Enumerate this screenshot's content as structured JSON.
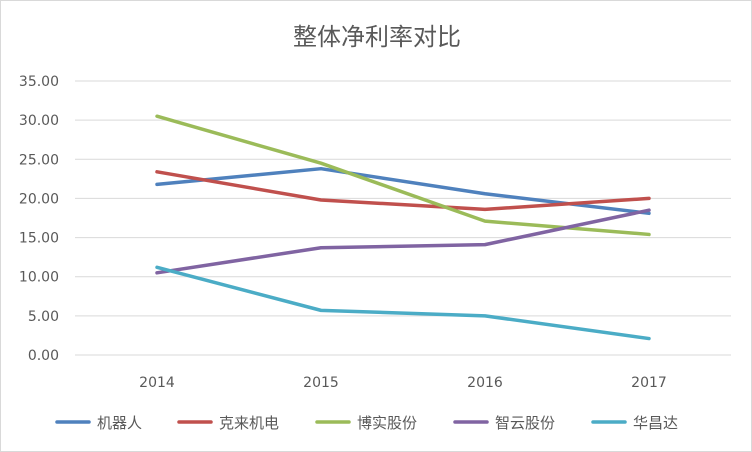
{
  "chart_data": {
    "type": "line",
    "title": "整体净利率对比",
    "categories": [
      "2014",
      "2015",
      "2016",
      "2017"
    ],
    "ylim": [
      0,
      35
    ],
    "yticks": [
      "0.00",
      "5.00",
      "10.00",
      "15.00",
      "20.00",
      "25.00",
      "30.00",
      "35.00"
    ],
    "grid": true,
    "legend_position": "bottom",
    "series": [
      {
        "name": "机器人",
        "color": "#4f81bd",
        "values": [
          21.8,
          23.8,
          20.6,
          18.1
        ]
      },
      {
        "name": "克来机电",
        "color": "#c0504d",
        "values": [
          23.4,
          19.8,
          18.6,
          20.0
        ]
      },
      {
        "name": "博实股份",
        "color": "#9bbb59",
        "values": [
          30.5,
          24.5,
          17.1,
          15.4
        ]
      },
      {
        "name": "智云股份",
        "color": "#8064a2",
        "values": [
          10.5,
          13.7,
          14.1,
          18.5
        ]
      },
      {
        "name": "华昌达",
        "color": "#4bacc6",
        "values": [
          11.2,
          5.7,
          5.0,
          2.1
        ]
      }
    ]
  }
}
